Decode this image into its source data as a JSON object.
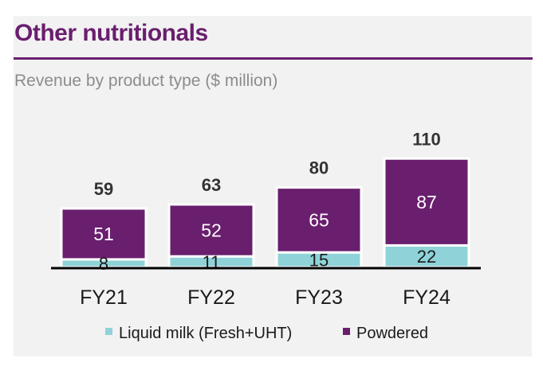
{
  "chart_data": {
    "type": "bar",
    "stacked": true,
    "title": "Other nutritionals",
    "subtitle": "Revenue by product type ($ million)",
    "categories": [
      "FY21",
      "FY22",
      "FY23",
      "FY24"
    ],
    "series": [
      {
        "name": "Liquid milk (Fresh+UHT)",
        "values": [
          8,
          11,
          15,
          22
        ],
        "color": "#8fd3d9"
      },
      {
        "name": "Powdered",
        "values": [
          51,
          52,
          65,
          87
        ],
        "color": "#6a1e6e"
      }
    ],
    "totals": [
      59,
      63,
      80,
      110
    ],
    "ylim": [
      0,
      110
    ],
    "legend_position": "bottom-center"
  },
  "theme": {
    "title_color": "#6a1e6e",
    "rule_color": "#6a1e6e",
    "subtitle_color": "#8c8c8c"
  }
}
